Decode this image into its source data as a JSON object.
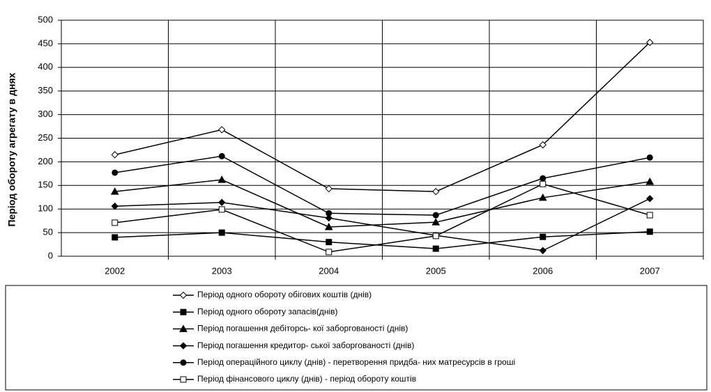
{
  "chart_data": {
    "type": "line",
    "y_label": "Період обороту агрегату в днях",
    "categories": [
      "2002",
      "2003",
      "2004",
      "2005",
      "2006",
      "2007"
    ],
    "ylim": [
      0,
      500
    ],
    "yticks": [
      0,
      50,
      100,
      150,
      200,
      250,
      300,
      350,
      400,
      450,
      500
    ],
    "grid": true,
    "series": [
      {
        "name": "Період одного обороту обігових коштів (днів)",
        "color": "#000000",
        "marker": "diamond-open",
        "values": [
          215,
          268,
          143,
          137,
          236,
          453
        ]
      },
      {
        "name": "Період одного обороту запасів(днів)",
        "color": "#000000",
        "marker": "square-filled",
        "values": [
          40,
          50,
          30,
          16,
          41,
          52
        ]
      },
      {
        "name": "Період погашення дебіторсь- кої заборгованості (днів)",
        "color": "#000000",
        "marker": "triangle-filled",
        "values": [
          137,
          162,
          62,
          72,
          124,
          158
        ]
      },
      {
        "name": "Період погашення кредитор-   ської заборгованості (днів)",
        "color": "#000000",
        "marker": "diamond-filled",
        "values": [
          106,
          114,
          81,
          44,
          12,
          122
        ]
      },
      {
        "name": "Період операційного циклу (днів) - перетворення придба- них матресурсів в гроші",
        "color": "#000000",
        "marker": "circle-filled",
        "values": [
          177,
          212,
          91,
          87,
          165,
          209
        ]
      },
      {
        "name": "Період фінансового циклу (днів) - період обороту коштів",
        "color": "#000000",
        "marker": "square-open",
        "values": [
          71,
          99,
          9,
          43,
          153,
          87
        ]
      }
    ]
  }
}
